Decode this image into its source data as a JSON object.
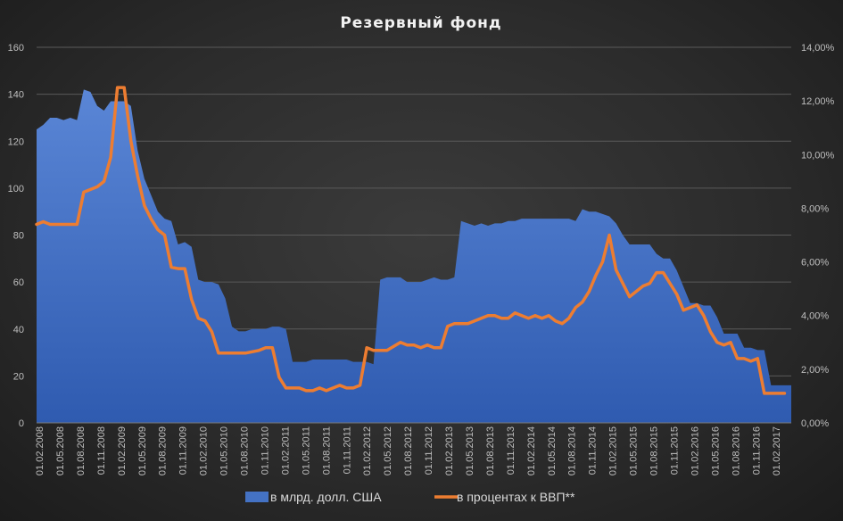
{
  "chart_data": {
    "type": "area+line",
    "title": "Резервный  фонд",
    "grid": "horizontal",
    "legend_position": "bottom",
    "y_left": {
      "min": 0,
      "max": 160,
      "ticks": [
        "0",
        "20",
        "40",
        "60",
        "80",
        "100",
        "120",
        "140",
        "160"
      ]
    },
    "y_right": {
      "min": 0,
      "max": 14,
      "ticks": [
        "0,00%",
        "2,00%",
        "4,00%",
        "6,00%",
        "8,00%",
        "10,00%",
        "12,00%",
        "14,00%"
      ]
    },
    "x_labels": [
      "01.02.2008",
      "01.05.2008",
      "01.08.2008",
      "01.11.2008",
      "01.02.2009",
      "01.05.2009",
      "01.08.2009",
      "01.11.2009",
      "01.02.2010",
      "01.05.2010",
      "01.08.2010",
      "01.11.2010",
      "01.02.2011",
      "01.05.2011",
      "01.08.2011",
      "01.11.2011",
      "01.02.2012",
      "01.05.2012",
      "01.08.2012",
      "01.11.2012",
      "01.02.2013",
      "01.05.2013",
      "01.08.2013",
      "01.11.2013",
      "01.02.2014",
      "01.05.2014",
      "01.08.2014",
      "01.11.2014",
      "01.02.2015",
      "01.05.2015",
      "01.08.2015",
      "01.11.2015",
      "01.02.2016",
      "01.05.2016",
      "01.08.2016",
      "01.11.2016",
      "01.02.2017"
    ],
    "series": [
      {
        "name": "в млрд. долл. США",
        "kind": "area",
        "axis": "left",
        "color": "#4472c4",
        "values": [
          125,
          127,
          130,
          130,
          129,
          130,
          129,
          142,
          141,
          135,
          133,
          137,
          137,
          137,
          135,
          116,
          104,
          97,
          90,
          87,
          86,
          76,
          77,
          75,
          61,
          60,
          60,
          59,
          53,
          41,
          39,
          39,
          40,
          40,
          40,
          41,
          41,
          40,
          26,
          26,
          26,
          27,
          27,
          27,
          27,
          27,
          27,
          26,
          26,
          26,
          25,
          61,
          62,
          62,
          62,
          60,
          60,
          60,
          61,
          62,
          61,
          61,
          62,
          86,
          85,
          84,
          85,
          84,
          85,
          85,
          86,
          86,
          87,
          87,
          87,
          87,
          87,
          87,
          87,
          87,
          86,
          91,
          90,
          90,
          89,
          88,
          85,
          80,
          76,
          76,
          76,
          76,
          72,
          70,
          70,
          65,
          58,
          51,
          51,
          50,
          50,
          45,
          38,
          38,
          38,
          32,
          32,
          31,
          31,
          16,
          16,
          16,
          16
        ]
      },
      {
        "name": "в процентах к ВВП**",
        "kind": "line",
        "axis": "right",
        "color": "#ed7d31",
        "values": [
          7.4,
          7.5,
          7.4,
          7.4,
          7.4,
          7.4,
          7.4,
          8.6,
          8.7,
          8.8,
          9.0,
          9.9,
          12.5,
          12.5,
          10.5,
          9.2,
          8.1,
          7.6,
          7.2,
          7.0,
          5.8,
          5.75,
          5.75,
          4.6,
          3.9,
          3.8,
          3.4,
          2.6,
          2.6,
          2.6,
          2.6,
          2.6,
          2.65,
          2.7,
          2.8,
          2.8,
          1.7,
          1.3,
          1.3,
          1.3,
          1.2,
          1.2,
          1.3,
          1.2,
          1.3,
          1.4,
          1.3,
          1.3,
          1.4,
          2.8,
          2.7,
          2.7,
          2.7,
          2.85,
          3.0,
          2.9,
          2.9,
          2.8,
          2.9,
          2.8,
          2.8,
          3.6,
          3.7,
          3.7,
          3.7,
          3.8,
          3.9,
          4.0,
          4.0,
          3.9,
          3.9,
          4.1,
          4.0,
          3.9,
          4.0,
          3.9,
          4.0,
          3.8,
          3.7,
          3.9,
          4.3,
          4.5,
          4.9,
          5.5,
          6.0,
          7.0,
          5.7,
          5.2,
          4.7,
          4.9,
          5.1,
          5.2,
          5.6,
          5.6,
          5.2,
          4.8,
          4.2,
          4.3,
          4.4,
          4.0,
          3.4,
          3.0,
          2.9,
          3.0,
          2.4,
          2.4,
          2.3,
          2.4,
          1.1,
          1.1,
          1.1,
          1.1
        ]
      }
    ]
  }
}
